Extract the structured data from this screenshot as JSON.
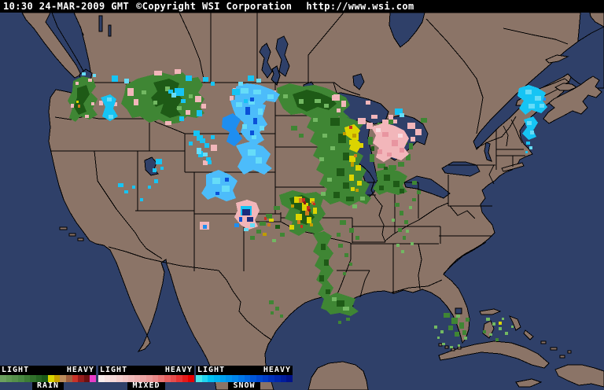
{
  "header": {
    "timestamp": "10:30 24-MAR-2009 GMT",
    "copyright": "©Copyright WSI Corporation",
    "url": "http://www.wsi.com"
  },
  "legends": [
    {
      "id": "rain",
      "light_label": "LIGHT",
      "heavy_label": "HEAVY",
      "name": "RAIN",
      "colors": [
        "#6ba05e",
        "#5f9852",
        "#55904a",
        "#498842",
        "#3d7c36",
        "#31702c",
        "#256422",
        "#1a5818",
        "#d8d400",
        "#c8a000",
        "#bc8c5c",
        "#a06040",
        "#c83228",
        "#941c1c",
        "#6c1010",
        "#e83cc8"
      ]
    },
    {
      "id": "mixed",
      "light_label": "LIGHT",
      "heavy_label": "HEAVY",
      "name": "MIXED",
      "colors": [
        "#f8ecec",
        "#f7e2e2",
        "#f5d8d8",
        "#f4cece",
        "#f2c4c4",
        "#f0baba",
        "#eeb0b0",
        "#eca4a4",
        "#ea9898",
        "#e88888",
        "#e87676",
        "#e66060",
        "#e64c4c",
        "#e63434",
        "#e61a1a",
        "#e60000"
      ]
    },
    {
      "id": "snow",
      "light_label": "LIGHT",
      "heavy_label": "HEAVY",
      "name": "SNOW",
      "colors": [
        "#48e8ec",
        "#20d4f0",
        "#00c0f0",
        "#00b0f0",
        "#00a0f0",
        "#0092ee",
        "#0084ec",
        "#0076e8",
        "#0066e0",
        "#0056d8",
        "#0048d0",
        "#003cc6",
        "#0030ba",
        "#0026ac",
        "#001c9c",
        "#00128a"
      ]
    }
  ],
  "palette": {
    "header_bg": "#000000",
    "header_text": "#ffffff",
    "water": "#2f4069",
    "land": "#8b7467",
    "outline": "#000000",
    "r_gl": "#72b862",
    "r_gm": "#3f8634",
    "r_gd": "#1e5a16",
    "r_yellow": "#dcd400",
    "r_gold": "#c09c00",
    "r_orange": "#cc7a1e",
    "r_red": "#c62e20",
    "r_dred": "#8e1616",
    "r_pink": "#f2b6ba",
    "r_pinkd": "#e895a0",
    "r_pinkl": "#f8dade",
    "r_cyan": "#16c4f4",
    "r_cyanl": "#66dcf8",
    "r_blueb": "#4cbcfa",
    "r_bluem": "#1e8ef0",
    "r_blued": "#0a50d8",
    "r_navy": "#1c2c7c"
  }
}
